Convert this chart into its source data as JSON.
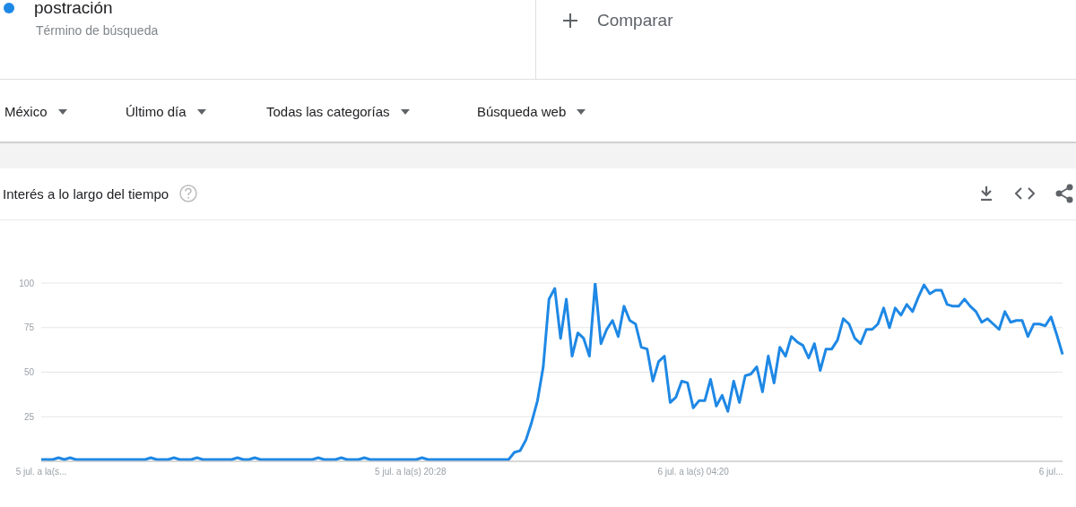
{
  "chart_data": {
    "type": "line",
    "title": "Interés a lo largo del tiempo",
    "annotations": [
      "Término de búsqueda",
      "Comparar",
      "México",
      "Último día",
      "Todas las categorías",
      "Búsqueda web"
    ],
    "legend": "top left",
    "grid": "y",
    "categories": [
      "5 jul. a la(s...",
      null,
      null,
      null,
      null,
      null,
      null,
      null,
      null,
      null,
      null,
      null,
      null,
      null,
      null,
      null,
      null,
      null,
      null,
      null,
      null,
      null,
      null,
      null,
      null,
      null,
      null,
      null,
      null,
      null,
      null,
      null,
      null,
      null,
      null,
      null,
      null,
      null,
      null,
      null,
      null,
      null,
      null,
      null,
      null,
      null,
      null,
      null,
      null,
      null,
      null,
      null,
      null,
      null,
      null,
      null,
      null,
      null,
      null,
      null,
      null,
      null,
      null,
      null,
      "5 jul. a la(s) 20:28",
      null,
      null,
      null,
      null,
      null,
      null,
      null,
      null,
      null,
      null,
      null,
      null,
      null,
      null,
      null,
      null,
      null,
      null,
      null,
      null,
      null,
      null,
      null,
      null,
      null,
      null,
      null,
      null,
      null,
      null,
      null,
      null,
      null,
      null,
      null,
      null,
      null,
      null,
      null,
      null,
      null,
      null,
      null,
      null,
      null,
      null,
      null,
      null,
      "6 jul. a la(s) 04:20",
      null,
      null,
      null,
      null,
      null,
      null,
      null,
      null,
      null,
      null,
      null,
      null,
      null,
      null,
      null,
      null,
      null,
      null,
      null,
      null,
      null,
      null,
      null,
      null,
      null,
      null,
      null,
      null,
      null,
      null,
      null,
      null,
      null,
      null,
      null,
      null,
      null,
      null,
      null,
      null,
      null,
      null,
      null,
      null,
      null,
      null,
      null,
      null,
      null,
      null,
      null,
      null,
      null,
      null,
      null,
      null,
      null,
      null,
      null,
      null,
      null,
      "6 jul...",
      null,
      null
    ],
    "ylim": [
      0,
      100
    ],
    "yticks": [
      {
        "value": 0,
        "label": null
      },
      25,
      50,
      75,
      100
    ],
    "series": [
      {
        "name": "postración",
        "color": "#1e88e5",
        "values": [
          1,
          1,
          1,
          2,
          1,
          2,
          1,
          1,
          1,
          1,
          1,
          1,
          1,
          1,
          1,
          1,
          1,
          1,
          1,
          2,
          1,
          1,
          1,
          2,
          1,
          1,
          1,
          2,
          1,
          1,
          1,
          1,
          1,
          1,
          2,
          1,
          1,
          2,
          1,
          1,
          1,
          1,
          1,
          1,
          1,
          1,
          1,
          1,
          2,
          1,
          1,
          1,
          2,
          1,
          1,
          1,
          2,
          1,
          1,
          1,
          1,
          1,
          1,
          1,
          1,
          1,
          2,
          1,
          1,
          1,
          1,
          1,
          1,
          1,
          1,
          1,
          1,
          1,
          1,
          1,
          1,
          1,
          5,
          6,
          12,
          22,
          34,
          53,
          91,
          97,
          69,
          91,
          59,
          72,
          69,
          59,
          100,
          66,
          74,
          79,
          70,
          87,
          79,
          77,
          64,
          63,
          45,
          56,
          59,
          33,
          36,
          45,
          44,
          30,
          34,
          34,
          46,
          31,
          37,
          28,
          45,
          33,
          48,
          49,
          53,
          39,
          59,
          44,
          64,
          59,
          70,
          67,
          65,
          58,
          66,
          51,
          63,
          63,
          68,
          80,
          77,
          69,
          66,
          74,
          74,
          77,
          86,
          75,
          86,
          82,
          88,
          84,
          92,
          99,
          94,
          96,
          96,
          88,
          87,
          87,
          91,
          87,
          84,
          78,
          80,
          77,
          74,
          84,
          78,
          79,
          79,
          70,
          77,
          77,
          76,
          81,
          71,
          60
        ]
      }
    ]
  }
}
